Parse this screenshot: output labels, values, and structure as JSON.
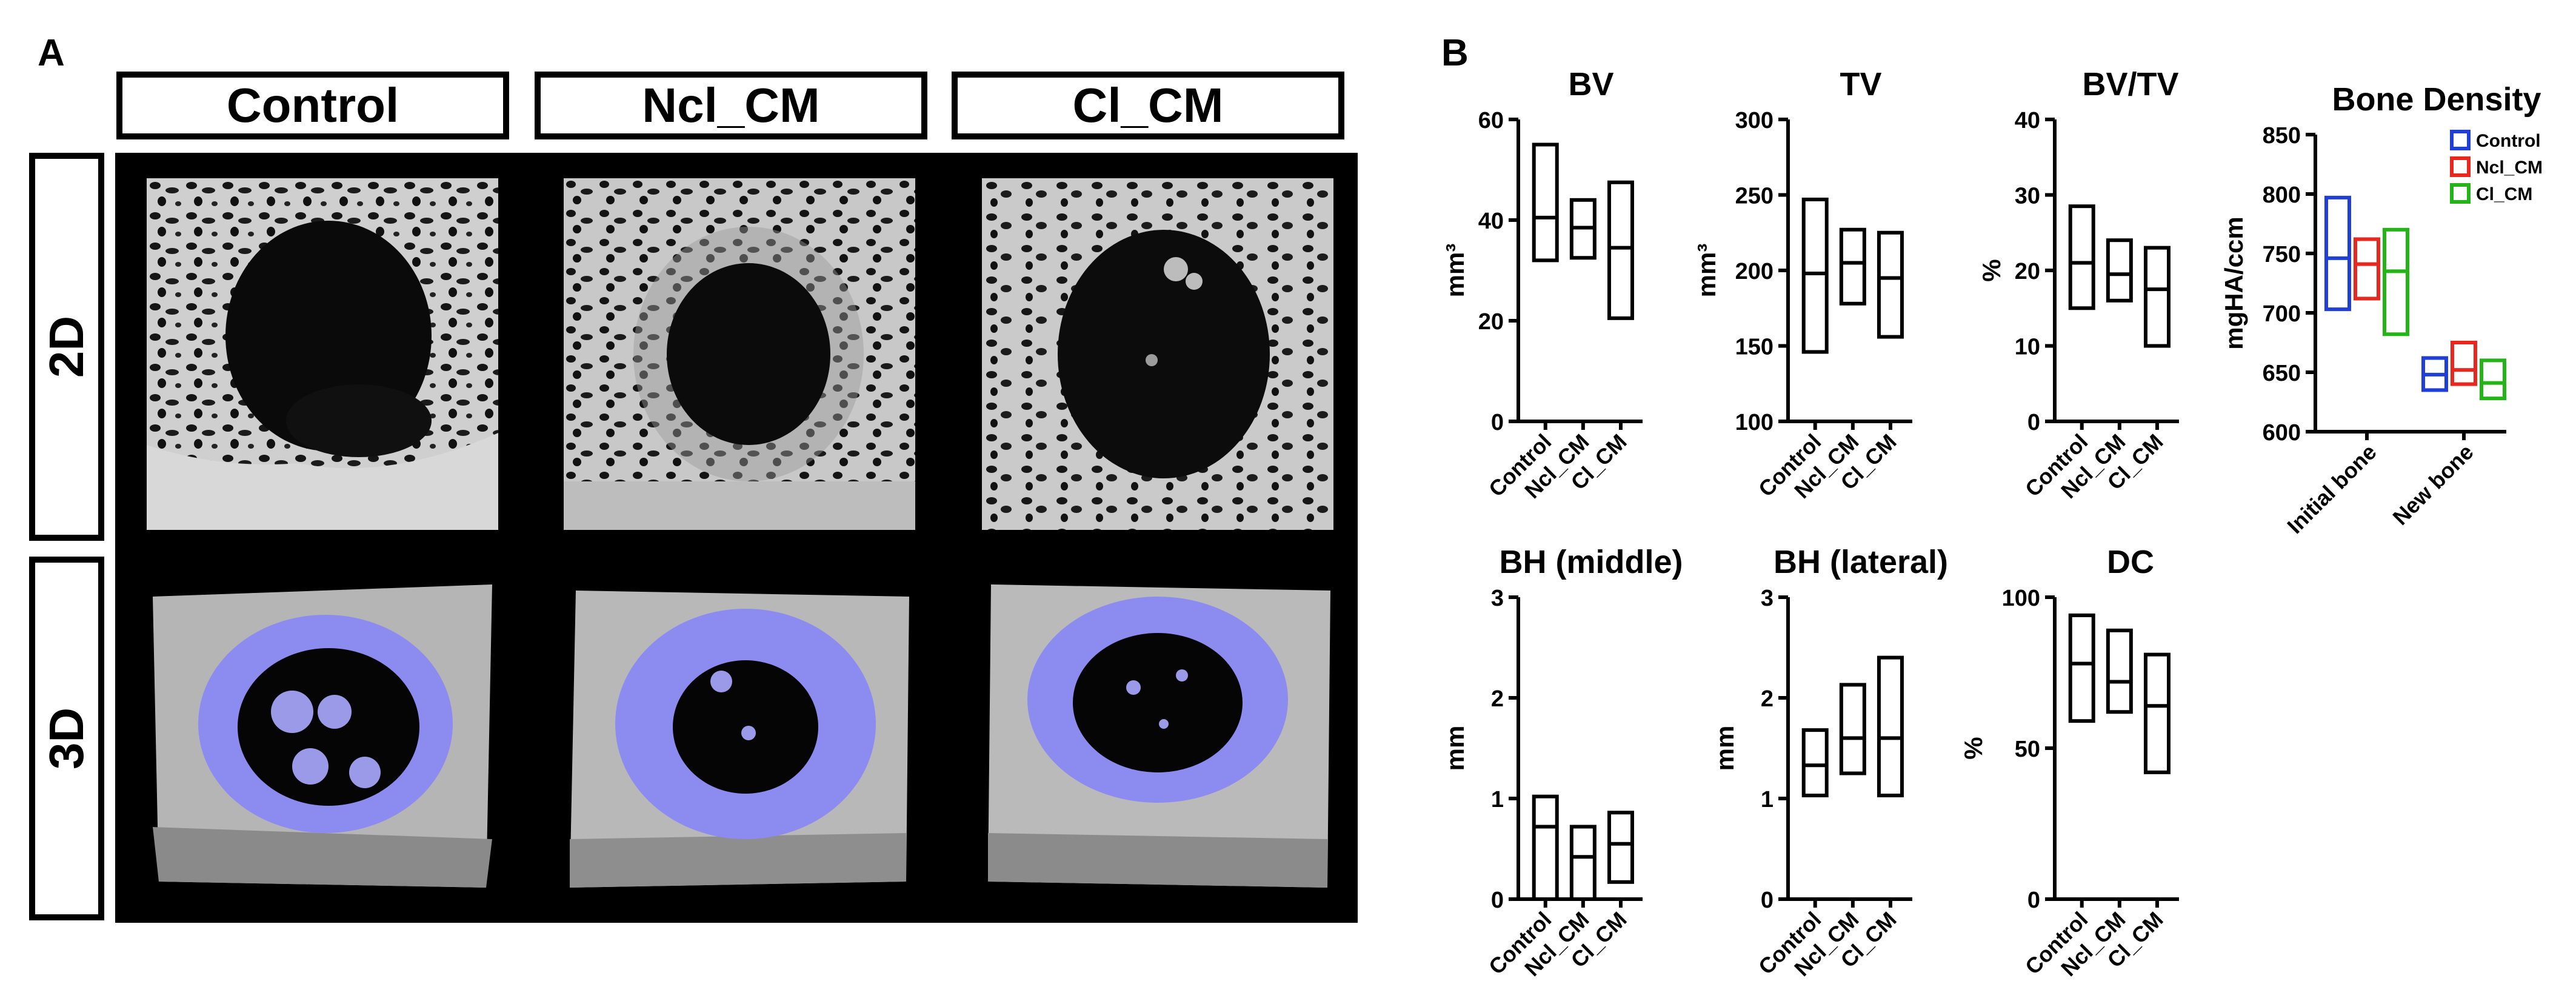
{
  "figure": {
    "panel_a": {
      "letter": "A",
      "columns": [
        "Control",
        "Ncl_CM",
        "Cl_CM"
      ],
      "rows": [
        "2D",
        "3D"
      ]
    },
    "panel_b": {
      "letter": "B"
    }
  },
  "colors": {
    "control": "#1f3fd6",
    "ncl_cm": "#e8281e",
    "cl_cm": "#25b418",
    "implant": "#8c8cf0",
    "box": "#000000"
  },
  "chart_data": [
    {
      "type": "box",
      "title": "BV",
      "ylabel": "mm³",
      "ylim": [
        0,
        60
      ],
      "yticks": [
        "0",
        "20",
        "40",
        "60"
      ],
      "categories": [
        "Control",
        "Ncl_CM",
        "Cl_CM"
      ],
      "boxes": [
        {
          "min": 32,
          "median": 40.5,
          "max": 55
        },
        {
          "min": 32.5,
          "median": 38.5,
          "max": 44
        },
        {
          "min": 20.5,
          "median": 34.5,
          "max": 47.5
        }
      ]
    },
    {
      "type": "box",
      "title": "TV",
      "ylabel": "mm³",
      "ylim": [
        100,
        300
      ],
      "yticks": [
        "100",
        "150",
        "200",
        "250",
        "300"
      ],
      "categories": [
        "Control",
        "Ncl_CM",
        "Cl_CM"
      ],
      "boxes": [
        {
          "min": 146,
          "median": 198,
          "max": 247
        },
        {
          "min": 178,
          "median": 205,
          "max": 227
        },
        {
          "min": 156,
          "median": 195,
          "max": 225
        }
      ]
    },
    {
      "type": "box",
      "title": "BV/TV",
      "ylabel": "%",
      "ylim": [
        0,
        40
      ],
      "yticks": [
        "0",
        "10",
        "20",
        "30",
        "40"
      ],
      "categories": [
        "Control",
        "Ncl_CM",
        "Cl_CM"
      ],
      "boxes": [
        {
          "min": 15,
          "median": 21,
          "max": 28.5
        },
        {
          "min": 16,
          "median": 19.5,
          "max": 24
        },
        {
          "min": 10,
          "median": 17.5,
          "max": 23
        }
      ]
    },
    {
      "type": "box",
      "title": "Bone Density",
      "ylabel": "mgHA/ccm",
      "ylim": [
        600,
        850
      ],
      "yticks": [
        "600",
        "650",
        "700",
        "750",
        "800",
        "850"
      ],
      "categories": [
        "Initial bone",
        "New bone"
      ],
      "legend": {
        "position": "top-right",
        "entries": [
          "Control",
          "Ncl_CM",
          "Cl_CM"
        ]
      },
      "series": [
        {
          "name": "Control",
          "boxes": [
            {
              "min": 703,
              "median": 746,
              "max": 797
            },
            {
              "min": 635,
              "median": 648,
              "max": 662
            }
          ]
        },
        {
          "name": "Ncl_CM",
          "boxes": [
            {
              "min": 712,
              "median": 741,
              "max": 762
            },
            {
              "min": 640,
              "median": 652,
              "max": 675
            }
          ]
        },
        {
          "name": "Cl_CM",
          "boxes": [
            {
              "min": 682,
              "median": 735,
              "max": 770
            },
            {
              "min": 628,
              "median": 641,
              "max": 660
            }
          ]
        }
      ]
    },
    {
      "type": "box",
      "title": "BH (middle)",
      "ylabel": "mm",
      "ylim": [
        0,
        3
      ],
      "yticks": [
        "0",
        "1",
        "2",
        "3"
      ],
      "categories": [
        "Control",
        "Ncl_CM",
        "Cl_CM"
      ],
      "boxes": [
        {
          "min": 0,
          "median": 0.72,
          "max": 1.02
        },
        {
          "min": 0,
          "median": 0.42,
          "max": 0.72
        },
        {
          "min": 0.17,
          "median": 0.55,
          "max": 0.86
        }
      ]
    },
    {
      "type": "box",
      "title": "BH (lateral)",
      "ylabel": "mm",
      "ylim": [
        0,
        3
      ],
      "yticks": [
        "0",
        "1",
        "2",
        "3"
      ],
      "categories": [
        "Control",
        "Ncl_CM",
        "Cl_CM"
      ],
      "boxes": [
        {
          "min": 1.03,
          "median": 1.33,
          "max": 1.68
        },
        {
          "min": 1.25,
          "median": 1.6,
          "max": 2.13
        },
        {
          "min": 1.03,
          "median": 1.6,
          "max": 2.4
        }
      ]
    },
    {
      "type": "box",
      "title": "DC",
      "ylabel": "%",
      "ylim": [
        0,
        100
      ],
      "yticks": [
        "0",
        "50",
        "100"
      ],
      "categories": [
        "Control",
        "Ncl_CM",
        "Cl_CM"
      ],
      "boxes": [
        {
          "min": 59,
          "median": 78,
          "max": 94
        },
        {
          "min": 62,
          "median": 72,
          "max": 89
        },
        {
          "min": 42,
          "median": 64,
          "max": 81
        }
      ]
    }
  ]
}
